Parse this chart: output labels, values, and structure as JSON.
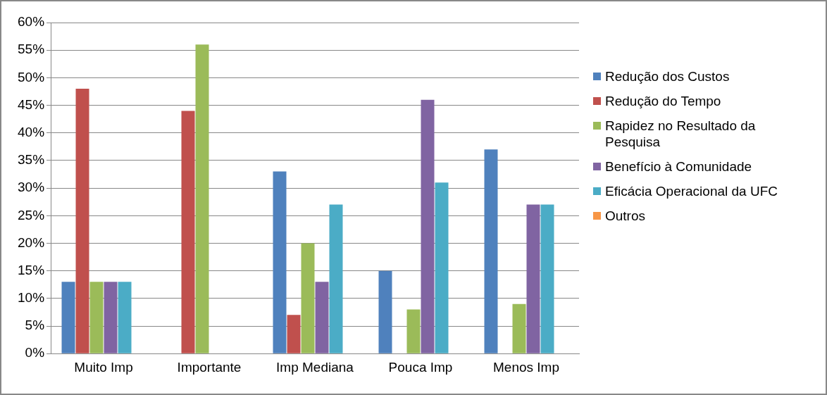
{
  "chart_data": {
    "type": "bar",
    "categories": [
      "Muito Imp",
      "Importante",
      "Imp Mediana",
      "Pouca Imp",
      "Menos Imp"
    ],
    "series": [
      {
        "name": "Redução dos Custos",
        "color": "#4f81bd",
        "values": [
          13,
          0,
          33,
          15,
          37
        ]
      },
      {
        "name": "Redução do Tempo",
        "color": "#c0504d",
        "values": [
          48,
          44,
          7,
          0,
          0
        ]
      },
      {
        "name": "Rapidez no Resultado da Pesquisa",
        "color": "#9bbb59",
        "values": [
          13,
          56,
          20,
          8,
          9
        ]
      },
      {
        "name": "Benefício à Comunidade",
        "color": "#8064a2",
        "values": [
          13,
          0,
          13,
          46,
          27
        ]
      },
      {
        "name": "Eficácia Operacional da UFC",
        "color": "#4bacc6",
        "values": [
          13,
          0,
          27,
          31,
          27
        ]
      },
      {
        "name": "Outros",
        "color": "#f79646",
        "values": [
          0,
          0,
          0,
          0,
          0
        ]
      }
    ],
    "ylim": [
      0,
      60
    ],
    "yticks": [
      {
        "value": 0,
        "label": "0%"
      },
      {
        "value": 5,
        "label": "5%"
      },
      {
        "value": 10,
        "label": "10%"
      },
      {
        "value": 15,
        "label": "15%"
      },
      {
        "value": 20,
        "label": "20%"
      },
      {
        "value": 25,
        "label": "25%"
      },
      {
        "value": 30,
        "label": "30%"
      },
      {
        "value": 35,
        "label": "35%"
      },
      {
        "value": 40,
        "label": "40%"
      },
      {
        "value": 45,
        "label": "45%"
      },
      {
        "value": 50,
        "label": "50%"
      },
      {
        "value": 55,
        "label": "55%"
      },
      {
        "value": 60,
        "label": "60%"
      }
    ],
    "grid": "y",
    "legend": "right"
  }
}
